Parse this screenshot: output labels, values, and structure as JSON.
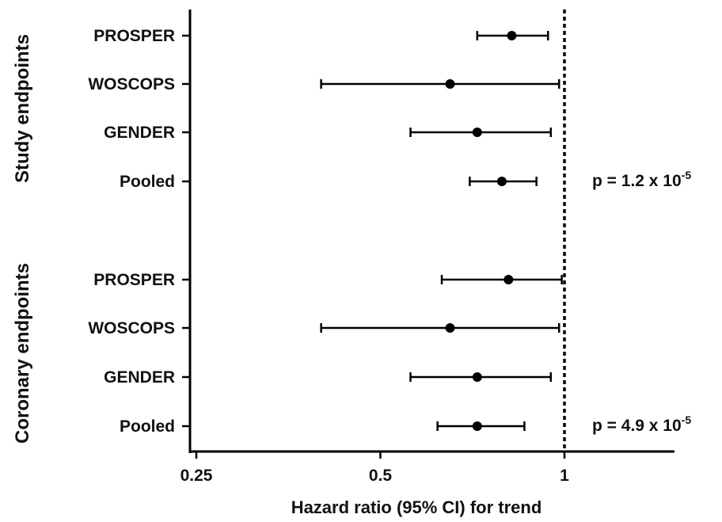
{
  "chart_data": {
    "type": "forest",
    "x_scale": "log2",
    "xlim": [
      0.25,
      1.55
    ],
    "xticks": [
      0.25,
      0.5,
      1
    ],
    "xtick_labels": [
      "0.25",
      "0.5",
      "1"
    ],
    "xlabel": "Hazard ratio (95% CI) for trend",
    "reference_line": {
      "x": 1,
      "style": "dotted"
    },
    "groups": [
      {
        "label": "Study endpoints",
        "p_label": "p = 1.2 x 10",
        "p_exponent": "-5",
        "rows": [
          {
            "label": "PROSPER",
            "hr": 0.82,
            "lo": 0.72,
            "hi": 0.94
          },
          {
            "label": "WOSCOPS",
            "hr": 0.65,
            "lo": 0.4,
            "hi": 0.98
          },
          {
            "label": "GENDER",
            "hr": 0.72,
            "lo": 0.56,
            "hi": 0.95
          },
          {
            "label": "Pooled",
            "hr": 0.79,
            "lo": 0.7,
            "hi": 0.9
          }
        ]
      },
      {
        "label": "Coronary endpoints",
        "p_label": "p = 4.9 x 10",
        "p_exponent": "-5",
        "rows": [
          {
            "label": "PROSPER",
            "hr": 0.81,
            "lo": 0.63,
            "hi": 0.99
          },
          {
            "label": "WOSCOPS",
            "hr": 0.65,
            "lo": 0.4,
            "hi": 0.98
          },
          {
            "label": "GENDER",
            "hr": 0.72,
            "lo": 0.56,
            "hi": 0.95
          },
          {
            "label": "Pooled",
            "hr": 0.72,
            "lo": 0.62,
            "hi": 0.86
          }
        ]
      }
    ]
  }
}
